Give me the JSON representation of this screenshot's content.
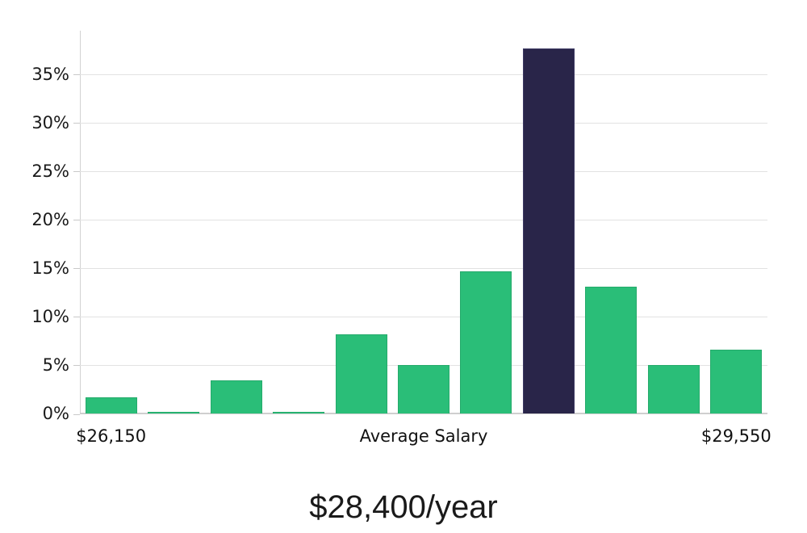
{
  "chart_data": {
    "type": "bar",
    "title": "$28,400/year",
    "values": [
      1.7,
      0.2,
      3.4,
      0.2,
      8.2,
      5.0,
      14.7,
      37.7,
      13.1,
      5.0,
      6.6
    ],
    "num_bars": 11,
    "highlighted_bar_index": 7,
    "x_axis_labels": [
      {
        "index": 0,
        "label": "$26,150"
      },
      {
        "index": 5,
        "label": "Average Salary"
      },
      {
        "index": 10,
        "label": "$29,550"
      }
    ],
    "y_ticks": [
      {
        "value": 0,
        "label": "0%"
      },
      {
        "value": 5,
        "label": "5%"
      },
      {
        "value": 10,
        "label": "10%"
      },
      {
        "value": 15,
        "label": "15%"
      },
      {
        "value": 20,
        "label": "20%"
      },
      {
        "value": 25,
        "label": "25%"
      },
      {
        "value": 30,
        "label": "30%"
      },
      {
        "value": 35,
        "label": "35%"
      }
    ],
    "ylim": [
      0,
      39.5
    ],
    "grid": "horizontal",
    "legend": "none",
    "colors": {
      "bar": "#2abe78",
      "bar_border": "#25aa6b",
      "highlight": "#292549",
      "highlight_border": "#3d3963",
      "gridline": "#e2e2e2",
      "axis": "#cfcfcf",
      "text": "#1a1a1a"
    }
  }
}
